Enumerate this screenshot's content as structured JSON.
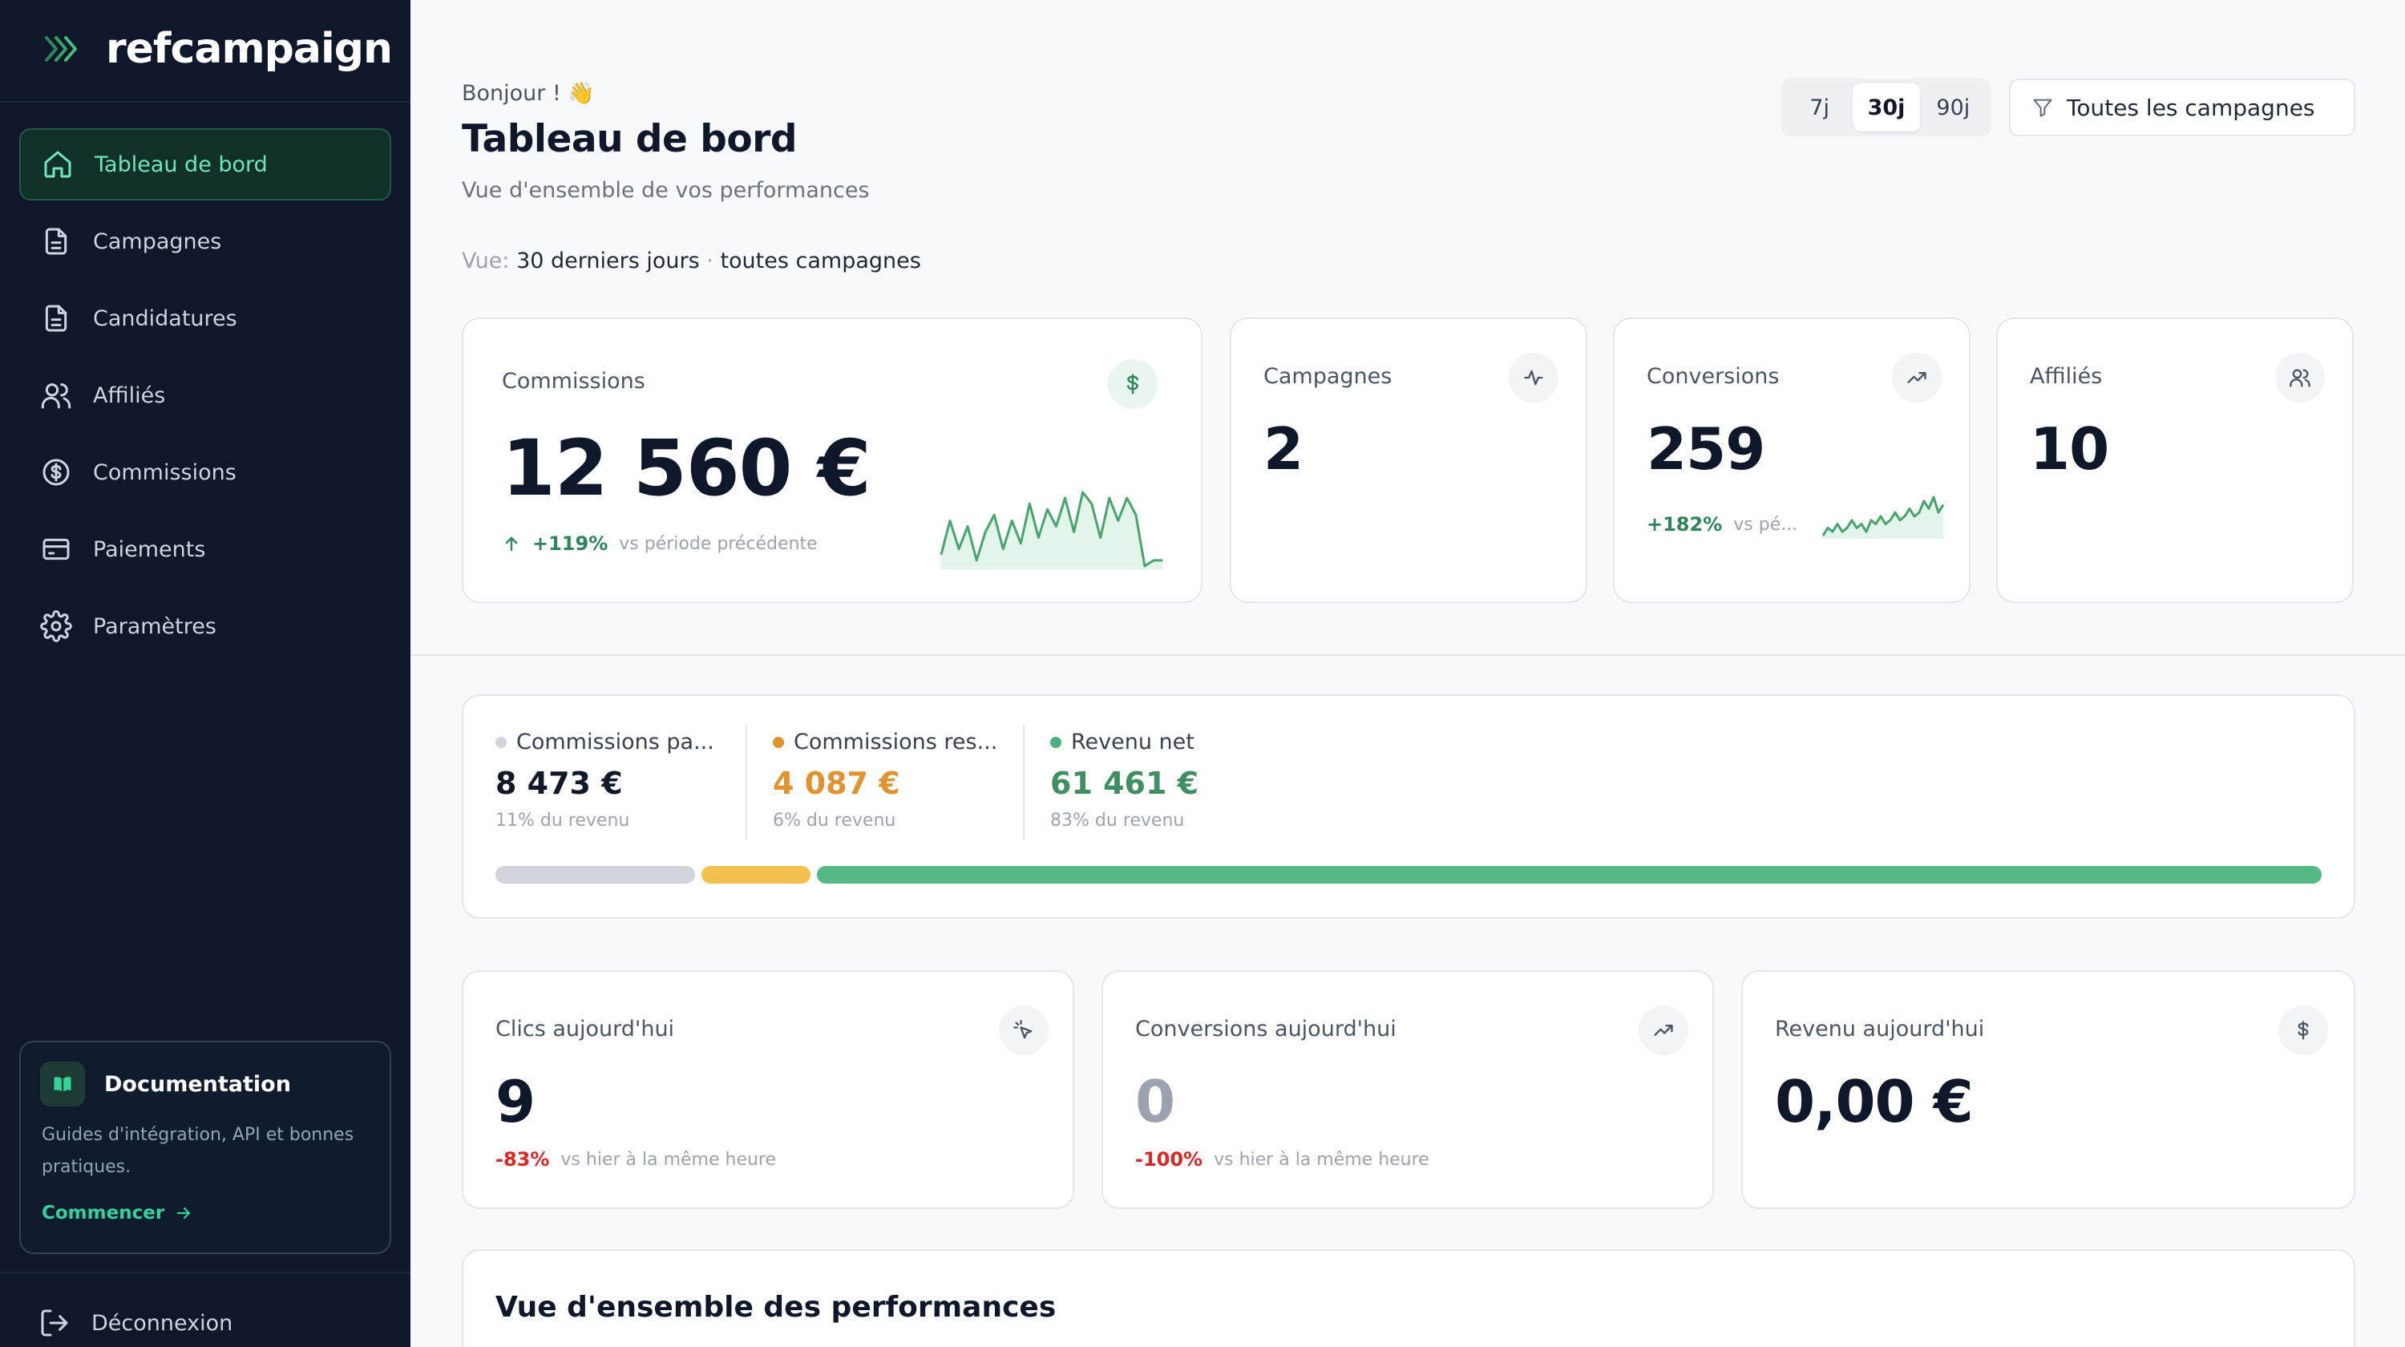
{
  "brand": {
    "name": "refcampaign"
  },
  "sidebar": {
    "items": [
      {
        "label": "Tableau de bord",
        "icon": "home-icon",
        "active": true
      },
      {
        "label": "Campagnes",
        "icon": "document-icon"
      },
      {
        "label": "Candidatures",
        "icon": "document-icon"
      },
      {
        "label": "Affiliés",
        "icon": "users-icon"
      },
      {
        "label": "Commissions",
        "icon": "dollar-circle-icon"
      },
      {
        "label": "Paiements",
        "icon": "credit-card-icon"
      },
      {
        "label": "Paramètres",
        "icon": "gear-icon"
      }
    ],
    "doc": {
      "title": "Documentation",
      "description": "Guides d'intégration, API et bonnes pratiques.",
      "link_label": "Commencer"
    },
    "logout_label": "Déconnexion"
  },
  "header": {
    "greeting": "Bonjour ! 👋",
    "title": "Tableau de bord",
    "subtitle": "Vue d'ensemble de vos performances",
    "view_prefix": "Vue:",
    "view_period": "30 derniers jours",
    "view_separator": "·",
    "view_scope": "toutes campagnes",
    "periods": [
      "7j",
      "30j",
      "90j"
    ],
    "active_period": "30j",
    "filter_label": "Toutes les campagnes"
  },
  "kpis": {
    "commissions": {
      "label": "Commissions",
      "value": "12 560 €",
      "delta": "+119%",
      "delta_sub": "vs période précédente",
      "sparkline": [
        3,
        9,
        4,
        8,
        2,
        7,
        10,
        4,
        9,
        5,
        12,
        6,
        11,
        8,
        13,
        7,
        14,
        12,
        6,
        13,
        9,
        13,
        10,
        1,
        2,
        2
      ]
    },
    "campagnes": {
      "label": "Campagnes",
      "value": "2"
    },
    "conversions": {
      "label": "Conversions",
      "value": "259",
      "delta": "+182%",
      "delta_sub": "vs pé...",
      "sparkline": [
        2,
        4,
        3,
        5,
        3,
        4,
        6,
        4,
        5,
        3,
        6,
        5,
        7,
        5,
        6,
        8,
        6,
        7,
        9,
        7,
        8,
        11,
        9,
        12,
        8,
        10
      ]
    },
    "affilies": {
      "label": "Affiliés",
      "value": "10"
    }
  },
  "split": {
    "items": [
      {
        "label": "Commissions pa...",
        "value": "8 473 €",
        "pct_label": "11% du revenu",
        "pct": 11,
        "color": "#d1d5db",
        "bar_color": "#d1d5db",
        "value_color": "#111827"
      },
      {
        "label": "Commissions res...",
        "value": "4 087 €",
        "pct_label": "6% du revenu",
        "pct": 6,
        "color": "#e0932f",
        "bar_color": "#f2c14e",
        "value_color": "#e0932f"
      },
      {
        "label": "Revenu net",
        "value": "61 461 €",
        "pct_label": "83% du revenu",
        "pct": 83,
        "color": "#4caf7d",
        "bar_color": "#55b985",
        "value_color": "#3f8f63"
      }
    ]
  },
  "today": [
    {
      "label": "Clics aujourd'hui",
      "value": "9",
      "delta": "-83%",
      "delta_sub": "vs hier à la même heure",
      "icon": "cursor-click-icon",
      "muted": false
    },
    {
      "label": "Conversions aujourd'hui",
      "value": "0",
      "delta": "-100%",
      "delta_sub": "vs hier à la même heure",
      "icon": "trending-up-icon",
      "muted": true
    },
    {
      "label": "Revenu aujourd'hui",
      "value": "0,00 €",
      "icon": "dollar-icon",
      "muted": false
    }
  ],
  "performance": {
    "title": "Vue d'ensemble des performances"
  }
}
